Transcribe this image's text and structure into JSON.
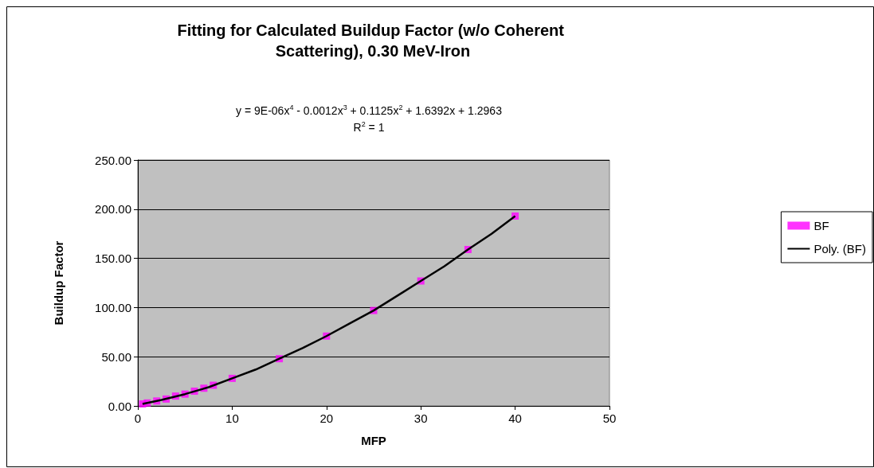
{
  "chart_data": {
    "type": "scatter",
    "title": "Fitting for Calculated Buildup Factor (w/o Coherent Scattering), 0.30 MeV-Iron",
    "xlabel": "MFP",
    "ylabel": "Buildup Factor",
    "annotations": [
      "y = 9E-06x$^{4}$ - 0.0012x$^{3}$ + 0.1125x$^{2}$ + 1.6392x + 1.2963",
      "R$^{2}$ = 1"
    ],
    "series": [
      {
        "name": "BF",
        "color": "#ff00ff",
        "marker": "square",
        "x": [
          0.5,
          1,
          2,
          3,
          4,
          5,
          6,
          7,
          8,
          10,
          15,
          20,
          25,
          30,
          35,
          40
        ],
        "values": [
          2,
          3,
          5,
          7,
          10,
          12,
          15,
          18,
          21,
          28,
          48,
          71,
          97,
          127,
          159,
          193
        ]
      },
      {
        "name": "Poly. (BF)",
        "type": "line",
        "color": "#000000",
        "marker": "none",
        "line_style": "solid",
        "x": [
          0.5,
          2.5,
          5,
          7.5,
          10,
          12.5,
          15,
          17.5,
          20,
          22.5,
          25,
          27.5,
          30,
          32.5,
          35,
          37.5,
          40
        ],
        "values": [
          2,
          6,
          12,
          19,
          28,
          37,
          48,
          59,
          71,
          84,
          97,
          112,
          127,
          142,
          159,
          175,
          193
        ]
      }
    ],
    "xlim": [
      0,
      50
    ],
    "xticks": [
      0,
      10,
      20,
      30,
      40,
      50
    ],
    "ylim": [
      0,
      250
    ],
    "yticks": [
      {
        "value": 0,
        "label": "0.00"
      },
      {
        "value": 50,
        "label": "50.00"
      },
      {
        "value": 100,
        "label": "100.00"
      },
      {
        "value": 150,
        "label": "150.00"
      },
      {
        "value": 200,
        "label": "200.00"
      },
      {
        "value": 250,
        "label": "250.00"
      }
    ],
    "grid": "y",
    "legend": "right"
  }
}
